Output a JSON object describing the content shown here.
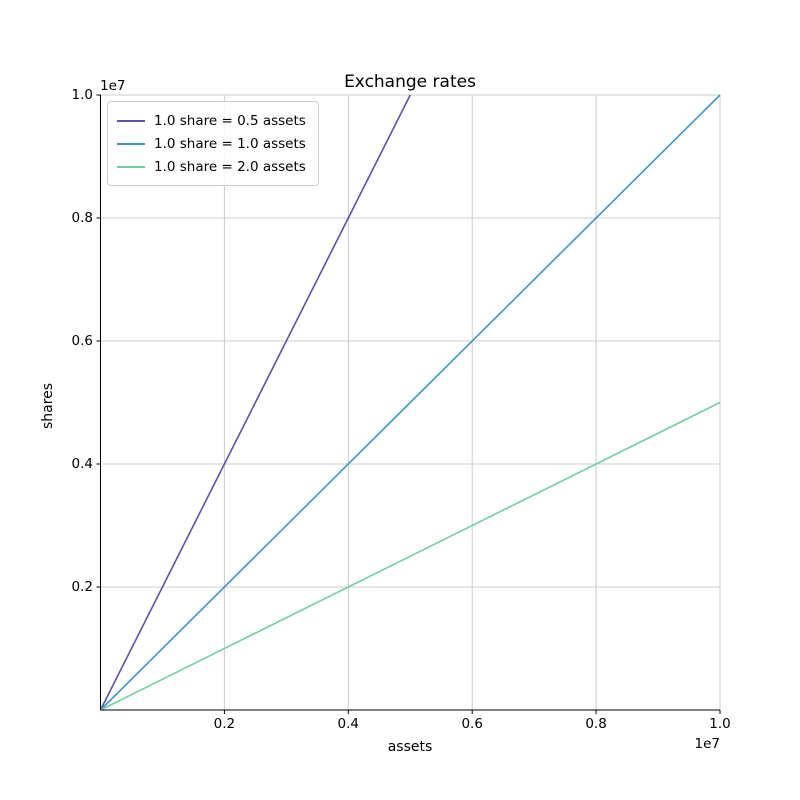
{
  "chart_data": {
    "type": "line",
    "title": "Exchange rates",
    "xlabel": "assets",
    "ylabel": "shares",
    "x_offset_text": "1e7",
    "y_offset_text": "1e7",
    "xlim": [
      0,
      10000000
    ],
    "ylim": [
      0,
      10000000
    ],
    "xticks": [
      2000000,
      4000000,
      6000000,
      8000000,
      10000000
    ],
    "xticklabels": [
      "0.2",
      "0.4",
      "0.6",
      "0.8",
      "1.0"
    ],
    "yticks": [
      2000000,
      4000000,
      6000000,
      8000000,
      10000000
    ],
    "yticklabels": [
      "0.2",
      "0.4",
      "0.6",
      "0.8",
      "1.0"
    ],
    "grid": true,
    "grid_color": "#cccccc",
    "spine_color": "#000000",
    "legend_position": "upper left",
    "series": [
      {
        "label": "1.0 share = 0.5 assets",
        "color": "#5a53a6",
        "points": [
          [
            0,
            0
          ],
          [
            5000000,
            10000000
          ]
        ]
      },
      {
        "label": "1.0 share = 1.0 assets",
        "color": "#4093ca",
        "points": [
          [
            0,
            0
          ],
          [
            10000000,
            10000000
          ]
        ]
      },
      {
        "label": "1.0 share = 2.0 assets",
        "color": "#72cf9f",
        "points": [
          [
            0,
            0
          ],
          [
            10000000,
            5000000
          ]
        ]
      }
    ]
  }
}
